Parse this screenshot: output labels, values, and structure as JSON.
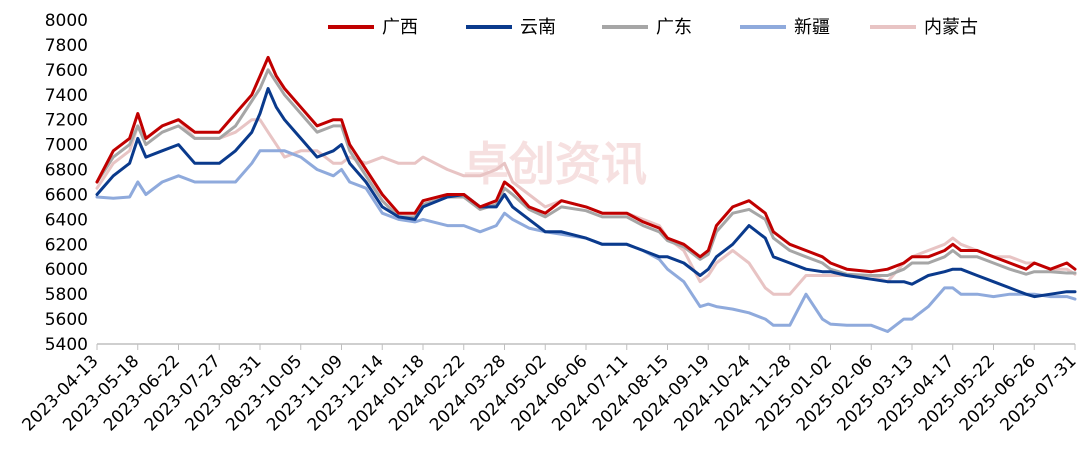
{
  "chart_data": {
    "type": "line",
    "ylim": [
      5400,
      8000
    ],
    "yticks": [
      5400,
      5600,
      5800,
      6000,
      6200,
      6400,
      6600,
      6800,
      7000,
      7200,
      7400,
      7600,
      7800,
      8000
    ],
    "xlim": [
      "2023-04-13",
      "2025-07-31"
    ],
    "xticks": [
      "2023-04-13",
      "2023-05-18",
      "2023-06-22",
      "2023-07-27",
      "2023-08-31",
      "2023-10-05",
      "2023-11-09",
      "2023-12-14",
      "2024-01-18",
      "2024-02-22",
      "2024-03-28",
      "2024-05-02",
      "2024-06-06",
      "2024-07-11",
      "2024-08-15",
      "2024-09-19",
      "2024-10-24",
      "2024-11-28",
      "2025-01-02",
      "2025-02-06",
      "2025-03-13",
      "2025-04-17",
      "2025-05-22",
      "2025-06-26",
      "2025-07-31"
    ],
    "grid": false,
    "legend_position": "top",
    "series": [
      {
        "name": "广西",
        "color": "#c00000",
        "x": [
          "2023-04-13",
          "2023-04-27",
          "2023-05-11",
          "2023-05-18",
          "2023-05-25",
          "2023-06-08",
          "2023-06-22",
          "2023-07-06",
          "2023-07-27",
          "2023-08-10",
          "2023-08-24",
          "2023-08-31",
          "2023-09-07",
          "2023-09-14",
          "2023-09-21",
          "2023-10-05",
          "2023-10-19",
          "2023-11-02",
          "2023-11-09",
          "2023-11-16",
          "2023-11-30",
          "2023-12-14",
          "2023-12-28",
          "2024-01-11",
          "2024-01-18",
          "2024-02-08",
          "2024-02-22",
          "2024-03-07",
          "2024-03-21",
          "2024-03-28",
          "2024-04-04",
          "2024-04-18",
          "2024-05-02",
          "2024-05-16",
          "2024-06-06",
          "2024-06-20",
          "2024-07-11",
          "2024-07-25",
          "2024-08-08",
          "2024-08-15",
          "2024-08-29",
          "2024-09-12",
          "2024-09-19",
          "2024-09-26",
          "2024-10-10",
          "2024-10-24",
          "2024-11-07",
          "2024-11-14",
          "2024-11-28",
          "2024-12-12",
          "2024-12-26",
          "2025-01-02",
          "2025-01-16",
          "2025-02-06",
          "2025-02-20",
          "2025-03-06",
          "2025-03-13",
          "2025-03-27",
          "2025-04-10",
          "2025-04-17",
          "2025-04-24",
          "2025-05-08",
          "2025-05-22",
          "2025-06-05",
          "2025-06-19",
          "2025-06-26",
          "2025-07-10",
          "2025-07-24",
          "2025-07-31"
        ],
        "values": [
          6700,
          6950,
          7050,
          7250,
          7050,
          7150,
          7200,
          7100,
          7100,
          7250,
          7400,
          7550,
          7700,
          7550,
          7450,
          7300,
          7150,
          7200,
          7200,
          7000,
          6800,
          6600,
          6450,
          6450,
          6550,
          6600,
          6600,
          6500,
          6550,
          6700,
          6650,
          6500,
          6450,
          6550,
          6500,
          6450,
          6450,
          6380,
          6330,
          6250,
          6200,
          6100,
          6150,
          6350,
          6500,
          6550,
          6450,
          6300,
          6200,
          6150,
          6100,
          6050,
          6000,
          5980,
          6000,
          6050,
          6100,
          6100,
          6150,
          6200,
          6150,
          6150,
          6100,
          6050,
          6000,
          6050,
          6000,
          6050,
          6000
        ]
      },
      {
        "name": "云南",
        "color": "#0a3a8c",
        "x": [
          "2023-04-13",
          "2023-04-27",
          "2023-05-11",
          "2023-05-18",
          "2023-05-25",
          "2023-06-08",
          "2023-06-22",
          "2023-07-06",
          "2023-07-27",
          "2023-08-10",
          "2023-08-24",
          "2023-08-31",
          "2023-09-07",
          "2023-09-14",
          "2023-09-21",
          "2023-10-05",
          "2023-10-19",
          "2023-11-02",
          "2023-11-09",
          "2023-11-16",
          "2023-11-30",
          "2023-12-14",
          "2023-12-28",
          "2024-01-11",
          "2024-01-18",
          "2024-02-08",
          "2024-02-22",
          "2024-03-07",
          "2024-03-21",
          "2024-03-28",
          "2024-04-04",
          "2024-04-18",
          "2024-05-02",
          "2024-05-16",
          "2024-06-06",
          "2024-06-20",
          "2024-07-11",
          "2024-07-25",
          "2024-08-08",
          "2024-08-15",
          "2024-08-29",
          "2024-09-12",
          "2024-09-19",
          "2024-09-26",
          "2024-10-10",
          "2024-10-24",
          "2024-11-07",
          "2024-11-14",
          "2024-11-28",
          "2024-12-12",
          "2024-12-26",
          "2025-01-02",
          "2025-01-16",
          "2025-02-06",
          "2025-02-20",
          "2025-03-06",
          "2025-03-13",
          "2025-03-27",
          "2025-04-10",
          "2025-04-17",
          "2025-04-24",
          "2025-05-08",
          "2025-05-22",
          "2025-06-05",
          "2025-06-19",
          "2025-06-26",
          "2025-07-10",
          "2025-07-24",
          "2025-07-31"
        ],
        "values": [
          6600,
          6750,
          6850,
          7050,
          6900,
          6950,
          7000,
          6850,
          6850,
          6950,
          7100,
          7250,
          7450,
          7300,
          7200,
          7050,
          6900,
          6950,
          7000,
          6850,
          6700,
          6500,
          6420,
          6400,
          6500,
          6580,
          6600,
          6500,
          6500,
          6600,
          6500,
          6400,
          6300,
          6300,
          6250,
          6200,
          6200,
          6150,
          6100,
          6100,
          6050,
          5950,
          6000,
          6100,
          6200,
          6350,
          6250,
          6100,
          6050,
          6000,
          5980,
          5980,
          5950,
          5920,
          5900,
          5900,
          5880,
          5950,
          5980,
          6000,
          6000,
          5950,
          5900,
          5850,
          5800,
          5780,
          5800,
          5820,
          5820
        ]
      },
      {
        "name": "广东",
        "color": "#a6a6a6",
        "x": [
          "2023-04-13",
          "2023-04-27",
          "2023-05-11",
          "2023-05-18",
          "2023-05-25",
          "2023-06-08",
          "2023-06-22",
          "2023-07-06",
          "2023-07-27",
          "2023-08-10",
          "2023-08-24",
          "2023-08-31",
          "2023-09-07",
          "2023-09-14",
          "2023-09-21",
          "2023-10-05",
          "2023-10-19",
          "2023-11-02",
          "2023-11-09",
          "2023-11-16",
          "2023-11-30",
          "2023-12-14",
          "2023-12-28",
          "2024-01-11",
          "2024-01-18",
          "2024-02-08",
          "2024-02-22",
          "2024-03-07",
          "2024-03-21",
          "2024-03-28",
          "2024-04-04",
          "2024-04-18",
          "2024-05-02",
          "2024-05-16",
          "2024-06-06",
          "2024-06-20",
          "2024-07-11",
          "2024-07-25",
          "2024-08-08",
          "2024-08-15",
          "2024-08-29",
          "2024-09-12",
          "2024-09-19",
          "2024-09-26",
          "2024-10-10",
          "2024-10-24",
          "2024-11-07",
          "2024-11-14",
          "2024-11-28",
          "2024-12-12",
          "2024-12-26",
          "2025-01-02",
          "2025-01-16",
          "2025-02-06",
          "2025-02-20",
          "2025-03-06",
          "2025-03-13",
          "2025-03-27",
          "2025-04-10",
          "2025-04-17",
          "2025-04-24",
          "2025-05-08",
          "2025-05-22",
          "2025-06-05",
          "2025-06-19",
          "2025-06-26",
          "2025-07-10",
          "2025-07-24",
          "2025-07-31"
        ],
        "values": [
          6700,
          6900,
          7000,
          7150,
          7000,
          7100,
          7150,
          7050,
          7050,
          7150,
          7350,
          7450,
          7600,
          7500,
          7400,
          7250,
          7100,
          7150,
          7150,
          6950,
          6750,
          6550,
          6420,
          6420,
          6520,
          6580,
          6580,
          6480,
          6520,
          6650,
          6600,
          6480,
          6420,
          6500,
          6470,
          6420,
          6420,
          6350,
          6300,
          6230,
          6180,
          6080,
          6120,
          6300,
          6450,
          6480,
          6400,
          6250,
          6150,
          6100,
          6050,
          6000,
          5960,
          5950,
          5950,
          6000,
          6050,
          6050,
          6100,
          6150,
          6100,
          6100,
          6050,
          6000,
          5960,
          5980,
          5980,
          5970,
          5970
        ]
      },
      {
        "name": "新疆",
        "color": "#8faadc",
        "x": [
          "2023-04-13",
          "2023-04-27",
          "2023-05-11",
          "2023-05-18",
          "2023-05-25",
          "2023-06-08",
          "2023-06-22",
          "2023-07-06",
          "2023-07-27",
          "2023-08-10",
          "2023-08-24",
          "2023-08-31",
          "2023-09-07",
          "2023-09-14",
          "2023-09-21",
          "2023-10-05",
          "2023-10-19",
          "2023-11-02",
          "2023-11-09",
          "2023-11-16",
          "2023-11-30",
          "2023-12-14",
          "2023-12-28",
          "2024-01-11",
          "2024-01-18",
          "2024-02-08",
          "2024-02-22",
          "2024-03-07",
          "2024-03-21",
          "2024-03-28",
          "2024-04-04",
          "2024-04-18",
          "2024-05-02",
          "2024-05-16",
          "2024-06-06",
          "2024-06-20",
          "2024-07-11",
          "2024-07-25",
          "2024-08-08",
          "2024-08-15",
          "2024-08-29",
          "2024-09-12",
          "2024-09-19",
          "2024-09-26",
          "2024-10-10",
          "2024-10-24",
          "2024-11-07",
          "2024-11-14",
          "2024-11-28",
          "2024-12-12",
          "2024-12-26",
          "2025-01-02",
          "2025-01-16",
          "2025-02-06",
          "2025-02-20",
          "2025-03-06",
          "2025-03-13",
          "2025-03-27",
          "2025-04-10",
          "2025-04-17",
          "2025-04-24",
          "2025-05-08",
          "2025-05-22",
          "2025-06-05",
          "2025-06-19",
          "2025-06-26",
          "2025-07-10",
          "2025-07-24",
          "2025-07-31"
        ],
        "values": [
          6580,
          6570,
          6580,
          6700,
          6600,
          6700,
          6750,
          6700,
          6700,
          6700,
          6850,
          6950,
          6950,
          6950,
          6950,
          6900,
          6800,
          6750,
          6800,
          6700,
          6650,
          6450,
          6400,
          6380,
          6400,
          6350,
          6350,
          6300,
          6350,
          6450,
          6400,
          6330,
          6300,
          6280,
          6250,
          6200,
          6200,
          6150,
          6080,
          6000,
          5900,
          5700,
          5720,
          5700,
          5680,
          5650,
          5600,
          5550,
          5550,
          5800,
          5600,
          5560,
          5550,
          5550,
          5500,
          5600,
          5600,
          5700,
          5850,
          5850,
          5800,
          5800,
          5780,
          5800,
          5800,
          5800,
          5780,
          5780,
          5760
        ]
      },
      {
        "name": "内蒙古",
        "color": "#e8c4c4",
        "x": [
          "2023-04-13",
          "2023-04-27",
          "2023-05-11",
          "2023-05-18",
          "2023-05-25",
          "2023-06-08",
          "2023-06-22",
          "2023-07-06",
          "2023-07-27",
          "2023-08-10",
          "2023-08-24",
          "2023-08-31",
          "2023-09-07",
          "2023-09-14",
          "2023-09-21",
          "2023-10-05",
          "2023-10-19",
          "2023-11-02",
          "2023-11-09",
          "2023-11-16",
          "2023-11-30",
          "2023-12-14",
          "2023-12-28",
          "2024-01-11",
          "2024-01-18",
          "2024-02-08",
          "2024-02-22",
          "2024-03-07",
          "2024-03-21",
          "2024-03-28",
          "2024-04-04",
          "2024-04-18",
          "2024-05-02",
          "2024-05-16",
          "2024-06-06",
          "2024-06-20",
          "2024-07-11",
          "2024-07-25",
          "2024-08-08",
          "2024-08-15",
          "2024-08-29",
          "2024-09-12",
          "2024-09-19",
          "2024-09-26",
          "2024-10-10",
          "2024-10-24",
          "2024-11-07",
          "2024-11-14",
          "2024-11-28",
          "2024-12-12",
          "2024-12-26",
          "2025-01-02",
          "2025-01-16",
          "2025-02-06",
          "2025-02-20",
          "2025-03-06",
          "2025-03-13",
          "2025-03-27",
          "2025-04-10",
          "2025-04-17",
          "2025-04-24",
          "2025-05-08",
          "2025-05-22",
          "2025-06-05",
          "2025-06-19",
          "2025-06-26",
          "2025-07-10",
          "2025-07-24",
          "2025-07-31"
        ],
        "values": [
          6650,
          6850,
          6950,
          7150,
          7050,
          7150,
          7200,
          7050,
          7050,
          7100,
          7200,
          7200,
          7100,
          7000,
          6900,
          6950,
          6950,
          6850,
          6850,
          6900,
          6850,
          6900,
          6850,
          6850,
          6900,
          6800,
          6750,
          6750,
          6800,
          6850,
          6700,
          6600,
          6500,
          6550,
          6500,
          6450,
          6450,
          6400,
          6350,
          6250,
          6150,
          5900,
          5950,
          6050,
          6150,
          6050,
          5850,
          5800,
          5800,
          5950,
          5950,
          5950,
          5950,
          5950,
          5900,
          6050,
          6100,
          6150,
          6200,
          6250,
          6200,
          6150,
          6100,
          6100,
          6050,
          6050,
          6000,
          6000,
          5960
        ]
      }
    ]
  },
  "watermark": {
    "text": "卓创资讯",
    "color": "#f0c8c8"
  }
}
